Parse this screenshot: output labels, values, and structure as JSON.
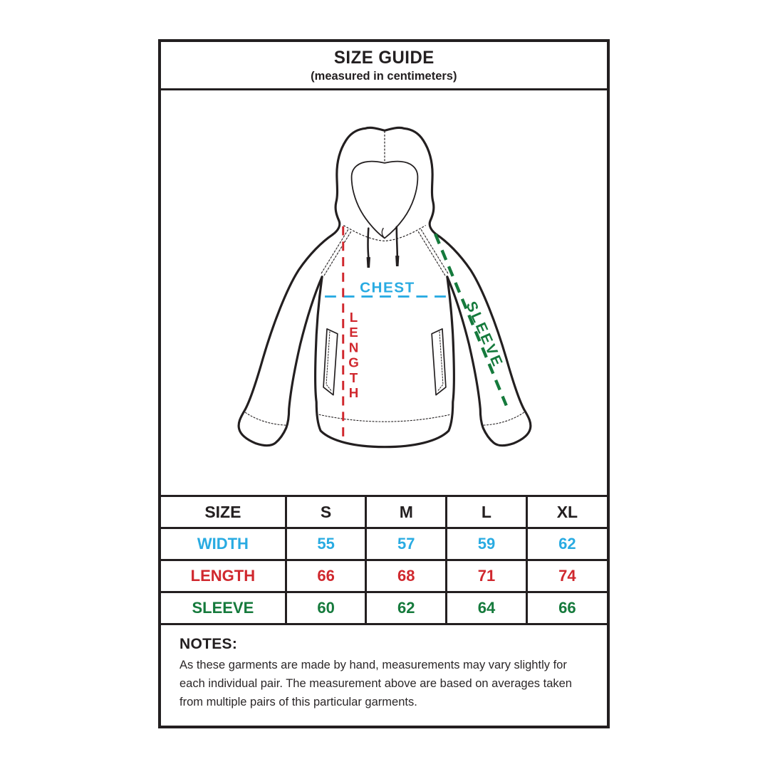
{
  "header": {
    "title": "SIZE GUIDE",
    "subtitle": "(measured in centimeters)"
  },
  "diagram": {
    "garment": "hoodie",
    "labels": {
      "chest": "CHEST",
      "length": "LENGTH",
      "sleeve": "SLEEVE"
    },
    "colors": {
      "chest": "#29abe2",
      "length": "#d0282e",
      "sleeve": "#157a3c",
      "outline": "#231f20"
    }
  },
  "table": {
    "columns": [
      "SIZE",
      "S",
      "M",
      "L",
      "XL"
    ],
    "rows": [
      {
        "label": "WIDTH",
        "color": "#29abe2",
        "values": [
          "55",
          "57",
          "59",
          "62"
        ]
      },
      {
        "label": "LENGTH",
        "color": "#d0282e",
        "values": [
          "66",
          "68",
          "71",
          "74"
        ]
      },
      {
        "label": "SLEEVE",
        "color": "#157a3c",
        "values": [
          "60",
          "62",
          "64",
          "66"
        ]
      }
    ]
  },
  "notes": {
    "heading": "NOTES:",
    "body": "As these garments are made by hand, measurements may vary slightly for each individual pair. The measurement above are based on averages taken from multiple pairs of this particular garments."
  }
}
